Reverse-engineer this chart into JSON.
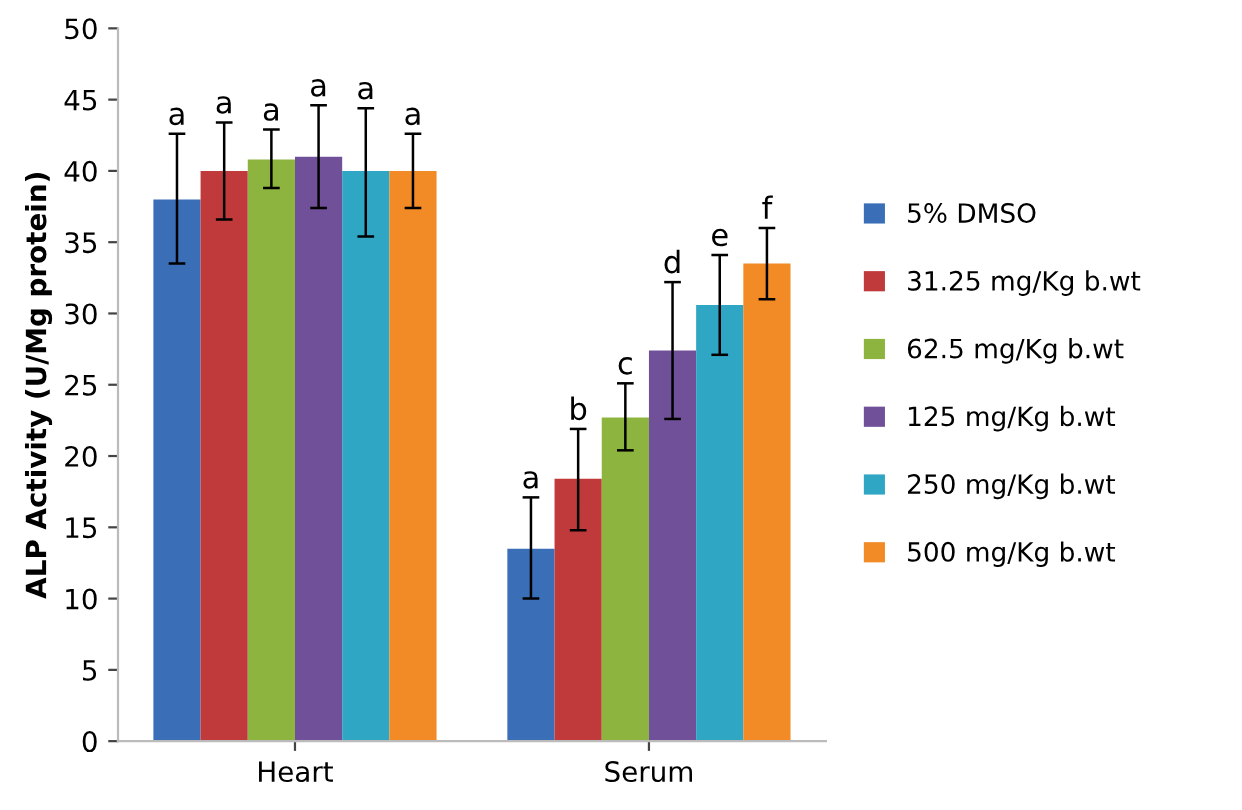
{
  "chart_data": {
    "type": "bar",
    "ylabel": "ALP Activity (U/Mg protein)",
    "categories": [
      "Heart",
      "Serum"
    ],
    "series": [
      {
        "name": "5% DMSO",
        "color": "#3a6fb8",
        "values": [
          38.0,
          13.5
        ],
        "errors": [
          [
            33.5,
            42.6
          ],
          [
            10.0,
            17.1
          ]
        ]
      },
      {
        "name": "31.25 mg/Kg b.wt",
        "color": "#c0393b",
        "values": [
          40.0,
          18.4
        ],
        "errors": [
          [
            36.6,
            43.4
          ],
          [
            14.8,
            21.9
          ]
        ]
      },
      {
        "name": "62.5 mg/Kg b.wt",
        "color": "#8db43e",
        "values": [
          40.8,
          22.7
        ],
        "errors": [
          [
            38.8,
            42.9
          ],
          [
            20.4,
            25.1
          ]
        ]
      },
      {
        "name": "125 mg/Kg b.wt",
        "color": "#71509a",
        "values": [
          41.0,
          27.4
        ],
        "errors": [
          [
            37.4,
            44.6
          ],
          [
            22.6,
            32.2
          ]
        ]
      },
      {
        "name": "250 mg/Kg b.wt",
        "color": "#2fa6c4",
        "values": [
          40.0,
          30.6
        ],
        "errors": [
          [
            35.4,
            44.4
          ],
          [
            27.1,
            34.1
          ]
        ]
      },
      {
        "name": "500 mg/Kg b.wt",
        "color": "#f28a25",
        "values": [
          40.0,
          33.5
        ],
        "errors": [
          [
            37.4,
            42.6
          ],
          [
            31.0,
            36.0
          ]
        ]
      }
    ],
    "annotations": [
      "a",
      "a",
      "a",
      "a",
      "a",
      "a",
      "a",
      "b",
      "c",
      "d",
      "e",
      "f"
    ],
    "ylim": [
      0,
      50
    ],
    "yticks": [
      0,
      5,
      10,
      15,
      20,
      25,
      30,
      35,
      40,
      45,
      50
    ],
    "grid": false,
    "legend": "right"
  }
}
